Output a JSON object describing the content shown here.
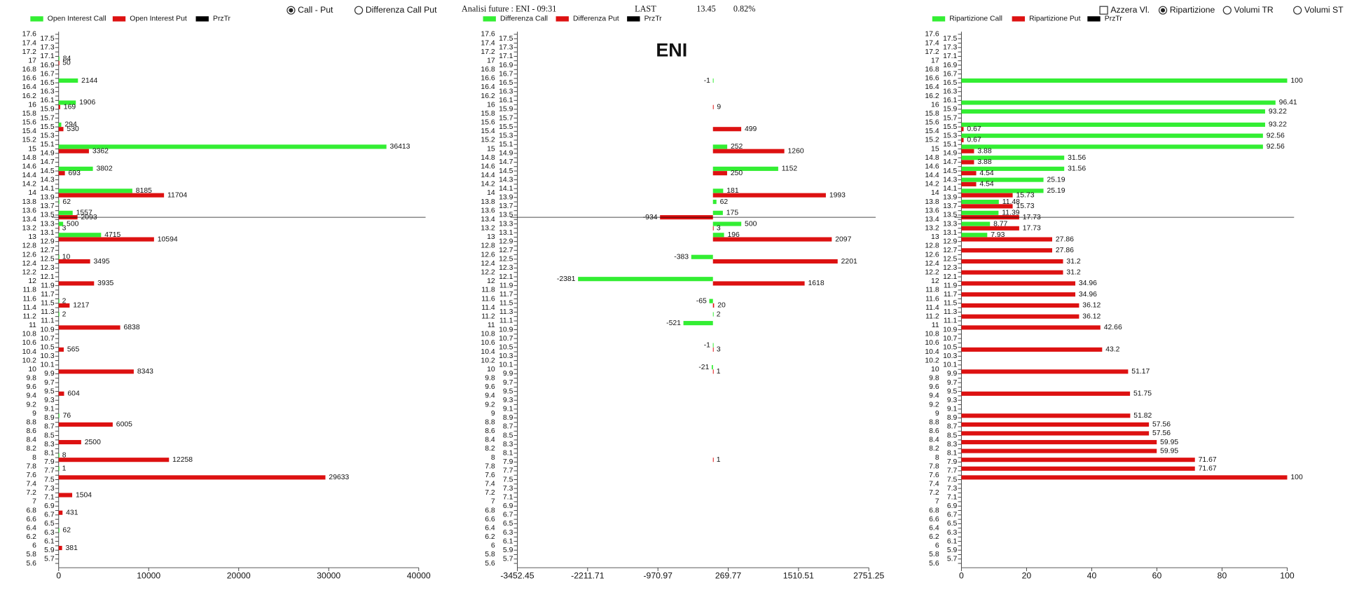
{
  "header": {
    "controls_left": [
      {
        "type": "radio",
        "label": "Call - Put",
        "checked": true
      },
      {
        "type": "radio",
        "label": "Differenza Call Put",
        "checked": false
      }
    ],
    "title": "Analisi future : ENI - 09:31",
    "last_label": "LAST",
    "last": 13.45,
    "change": "0.82%",
    "controls_right": [
      {
        "type": "checkbox",
        "label": "Azzera Vl.",
        "checked": false
      },
      {
        "type": "radio",
        "label": "Ripartizione",
        "checked": true
      },
      {
        "type": "radio",
        "label": "Volumi TR",
        "checked": false
      },
      {
        "type": "radio",
        "label": "Volumi ST",
        "checked": false
      }
    ]
  },
  "strike_axis": {
    "ylim": [
      5.6,
      17.6
    ],
    "yticks": [
      5.6,
      5.7,
      5.8,
      5.9,
      6,
      6.1,
      6.2,
      6.3,
      6.4,
      6.5,
      6.6,
      6.7,
      6.8,
      6.9,
      7,
      7.1,
      7.2,
      7.3,
      7.4,
      7.5,
      7.6,
      7.7,
      7.8,
      7.9,
      8,
      8.1,
      8.2,
      8.3,
      8.4,
      8.5,
      8.6,
      8.7,
      8.8,
      8.9,
      9,
      9.1,
      9.2,
      9.3,
      9.4,
      9.5,
      9.6,
      9.7,
      9.8,
      9.9,
      10,
      10.1,
      10.2,
      10.3,
      10.4,
      10.5,
      10.6,
      10.7,
      10.8,
      10.9,
      11,
      11.1,
      11.2,
      11.3,
      11.4,
      11.5,
      11.6,
      11.7,
      11.8,
      11.9,
      12,
      12.1,
      12.2,
      12.3,
      12.4,
      12.5,
      12.6,
      12.7,
      12.8,
      12.9,
      13,
      13.1,
      13.2,
      13.3,
      13.4,
      13.5,
      13.6,
      13.7,
      13.8,
      13.9,
      14,
      14.1,
      14.2,
      14.3,
      14.4,
      14.5,
      14.6,
      14.7,
      14.8,
      14.9,
      15,
      15.1,
      15.2,
      15.3,
      15.4,
      15.5,
      15.6,
      15.7,
      15.8,
      15.9,
      16,
      16.1,
      16.2,
      16.3,
      16.4,
      16.5,
      16.6,
      16.7,
      16.8,
      16.9,
      17,
      17.1,
      17.2,
      17.3,
      17.4,
      17.5,
      17.6
    ]
  },
  "chart_data": [
    {
      "type": "bar",
      "xlim": [
        0,
        40000
      ],
      "xticks": [
        0,
        10000,
        20000,
        30000,
        40000
      ],
      "series": [
        {
          "name": "Open Interest Call",
          "color": "#33ee33",
          "y": [
            17.05,
            16.55,
            16.05,
            15.55,
            15.05,
            14.55,
            14.05,
            13.8,
            13.55,
            13.3,
            13.05,
            12.55,
            11.55,
            11.25,
            8.95,
            8.05,
            7.75,
            6.35
          ],
          "values": [
            84,
            2144,
            1906,
            294,
            36413,
            3802,
            8185,
            62,
            1557,
            500,
            4715,
            10,
            2,
            2,
            76,
            8,
            1,
            62
          ]
        },
        {
          "name": "Open Interest Put",
          "color": "#dd1111",
          "y": [
            16.95,
            15.95,
            15.45,
            14.95,
            14.45,
            13.95,
            13.45,
            13.2,
            12.95,
            12.45,
            11.95,
            11.45,
            10.95,
            10.45,
            9.95,
            9.45,
            8.75,
            8.35,
            7.95,
            7.55,
            7.15,
            6.75,
            5.95
          ],
          "values": [
            50,
            169,
            530,
            3362,
            693,
            11704,
            2093,
            3,
            10594,
            3495,
            3935,
            1217,
            6838,
            565,
            8343,
            604,
            6005,
            2500,
            12258,
            29633,
            1504,
            431,
            381
          ]
        },
        {
          "name": "PrzTr",
          "color": "#000000",
          "value": 13.45
        }
      ]
    },
    {
      "type": "bar",
      "title": "ENI",
      "xlim": [
        -3452.45,
        2751.25
      ],
      "xticks": [
        -3452.45,
        -2211.71,
        -970.97,
        269.77,
        1510.51,
        2751.25
      ],
      "series": [
        {
          "name": "Differenza Call",
          "color": "#33ee33",
          "y": [
            16.55,
            15.05,
            14.55,
            14.05,
            13.8,
            13.55,
            13.3,
            13.05,
            12.55,
            12.05,
            11.55,
            11.25,
            11.05,
            10.55,
            10.05
          ],
          "values": [
            -1,
            252,
            1152,
            181,
            62,
            175,
            500,
            196,
            -383,
            -2381,
            -65,
            2,
            -521,
            -1,
            -21
          ]
        },
        {
          "name": "Differenza Put",
          "color": "#dd1111",
          "y": [
            15.95,
            15.45,
            14.95,
            14.45,
            13.95,
            13.45,
            13.2,
            12.95,
            12.45,
            11.95,
            11.45,
            10.45,
            9.95,
            7.95
          ],
          "values": [
            9,
            499,
            1260,
            250,
            1993,
            -934,
            3,
            2097,
            2201,
            1618,
            20,
            3,
            1,
            1
          ]
        },
        {
          "name": "PrzTr",
          "color": "#000000",
          "value": 13.45
        }
      ]
    },
    {
      "type": "bar",
      "xlim": [
        0,
        100
      ],
      "xticks": [
        0,
        20,
        40,
        60,
        80,
        100
      ],
      "series": [
        {
          "name": "Ripartizione Call",
          "color": "#33ee33",
          "y": [
            16.55,
            16.05,
            15.85,
            15.55,
            15.3,
            15.05,
            14.8,
            14.55,
            14.3,
            14.05,
            13.8,
            13.55,
            13.3,
            13.05
          ],
          "values": [
            100,
            96.41,
            93.22,
            93.22,
            92.56,
            92.56,
            31.56,
            31.56,
            25.19,
            25.19,
            11.48,
            11.39,
            8.77,
            7.93
          ]
        },
        {
          "name": "Ripartizione Put",
          "color": "#dd1111",
          "y": [
            15.45,
            15.2,
            14.95,
            14.7,
            14.45,
            14.2,
            13.95,
            13.7,
            13.45,
            13.2,
            12.95,
            12.7,
            12.45,
            12.2,
            11.95,
            11.7,
            11.45,
            11.2,
            10.95,
            10.45,
            9.95,
            9.45,
            8.95,
            8.75,
            8.55,
            8.35,
            8.15,
            7.95,
            7.75,
            7.55
          ],
          "values": [
            0.67,
            0.67,
            3.88,
            3.88,
            4.54,
            4.54,
            15.73,
            15.73,
            17.73,
            17.73,
            27.86,
            27.86,
            31.2,
            31.2,
            34.96,
            34.96,
            36.12,
            36.12,
            42.66,
            43.2,
            51.17,
            51.75,
            51.82,
            57.56,
            57.56,
            59.95,
            59.95,
            71.67,
            71.67,
            100
          ]
        },
        {
          "name": "PrzTr",
          "color": "#000000",
          "value": 13.45
        }
      ]
    }
  ]
}
